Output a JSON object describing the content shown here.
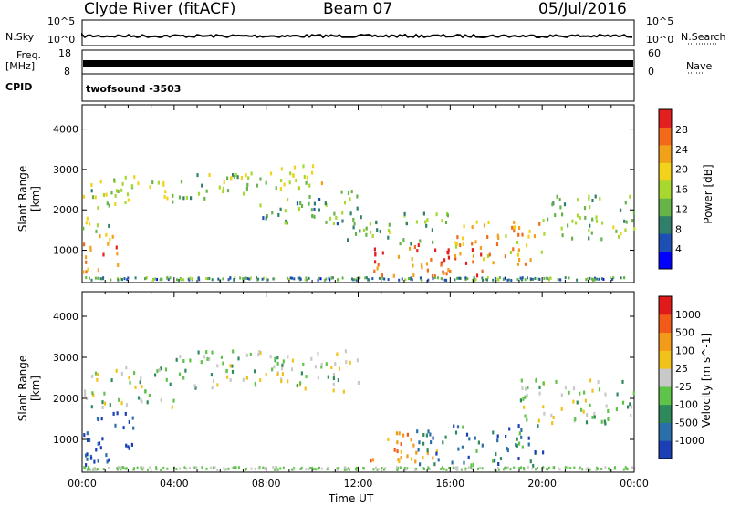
{
  "header": {
    "station": "Clyde River (fitACF)",
    "beam": "Beam 07",
    "date": "05/Jul/2016"
  },
  "nsky_panel": {
    "left_label": "N.Sky",
    "left_ticks": [
      "10^5",
      "10^0"
    ],
    "right_label": "N.Search",
    "right_ticks": [
      "10^5",
      "10^0"
    ]
  },
  "freq_panel": {
    "left_label_line1": "Freq.",
    "left_label_line2": "[MHz]",
    "left_ticks": [
      "18",
      "8"
    ],
    "right_label": "Nave",
    "right_ticks": [
      "60",
      "0"
    ]
  },
  "cpid_panel": {
    "label": "CPID",
    "value": "twofsound -3503"
  },
  "chart_data": [
    {
      "type": "heatmap",
      "name": "power",
      "ylabel": "Slant Range [km]",
      "yticks": [
        "1000",
        "2000",
        "3000",
        "4000"
      ],
      "ylim": [
        200,
        4600
      ],
      "xlim_hours": [
        0,
        24
      ],
      "colorbar_label": "Power [dB]",
      "colorbar_ticks": [
        "28",
        "24",
        "20",
        "16",
        "12",
        "8",
        "4"
      ],
      "colorbar_colors": [
        "#0000ff",
        "#1e4fb4",
        "#2f7f6a",
        "#66b34a",
        "#a6d82e",
        "#f2d21a",
        "#f2a11a",
        "#f26a1a",
        "#e32020"
      ],
      "bands": [
        {
          "t0": 0.0,
          "t1": 1.6,
          "r0": 500,
          "r1": 1400,
          "level": 0.8
        },
        {
          "t0": 0.0,
          "t1": 1.6,
          "r0": 1400,
          "r1": 2800,
          "level": 0.45
        },
        {
          "t0": 1.6,
          "t1": 4.0,
          "r0": 2200,
          "r1": 2900,
          "level": 0.5
        },
        {
          "t0": 4.0,
          "t1": 7.0,
          "r0": 2300,
          "r1": 3000,
          "level": 0.45
        },
        {
          "t0": 7.0,
          "t1": 10.5,
          "r0": 2500,
          "r1": 3200,
          "level": 0.5
        },
        {
          "t0": 7.5,
          "t1": 12.0,
          "r0": 1700,
          "r1": 2500,
          "level": 0.35
        },
        {
          "t0": 11.5,
          "t1": 16.0,
          "r0": 1200,
          "r1": 2000,
          "level": 0.4
        },
        {
          "t0": 12.5,
          "t1": 17.5,
          "r0": 400,
          "r1": 1200,
          "level": 0.85
        },
        {
          "t0": 16.0,
          "t1": 20.0,
          "r0": 700,
          "r1": 1800,
          "level": 0.7
        },
        {
          "t0": 20.0,
          "t1": 24.0,
          "r0": 1300,
          "r1": 2400,
          "level": 0.4
        }
      ]
    },
    {
      "type": "heatmap",
      "name": "velocity",
      "ylabel": "Slant Range [km]",
      "yticks": [
        "1000",
        "2000",
        "3000",
        "4000"
      ],
      "ylim": [
        200,
        4600
      ],
      "xlim_hours": [
        0,
        24
      ],
      "xlabel": "Time UT",
      "xticks": [
        "00:00",
        "04:00",
        "08:00",
        "12:00",
        "16:00",
        "20:00",
        "00:00"
      ],
      "colorbar_label": "Velocity [m s^-1]",
      "colorbar_ticks": [
        "1000",
        "500",
        "100",
        "25",
        "-25",
        "-100",
        "-500",
        "-1000"
      ],
      "colorbar_colors": [
        "#1d3fb5",
        "#2a6fa8",
        "#2e8a5a",
        "#5fc34a",
        "#c9c9c9",
        "#f2c21a",
        "#f29a1a",
        "#f25a1a",
        "#e01a1a"
      ],
      "bands": [
        {
          "t0": 0.0,
          "t1": 2.3,
          "r0": 400,
          "r1": 1700,
          "level": 0.05
        },
        {
          "t0": 0.0,
          "t1": 4.0,
          "r0": 1800,
          "r1": 2800,
          "level": 0.45
        },
        {
          "t0": 4.0,
          "t1": 12.0,
          "r0": 2200,
          "r1": 3200,
          "level": 0.45
        },
        {
          "t0": 12.5,
          "t1": 15.5,
          "r0": 500,
          "r1": 1200,
          "level": 0.75
        },
        {
          "t0": 14.5,
          "t1": 20.0,
          "r0": 400,
          "r1": 1400,
          "level": 0.2
        },
        {
          "t0": 19.0,
          "t1": 24.0,
          "r0": 1400,
          "r1": 2500,
          "level": 0.45
        }
      ]
    }
  ]
}
